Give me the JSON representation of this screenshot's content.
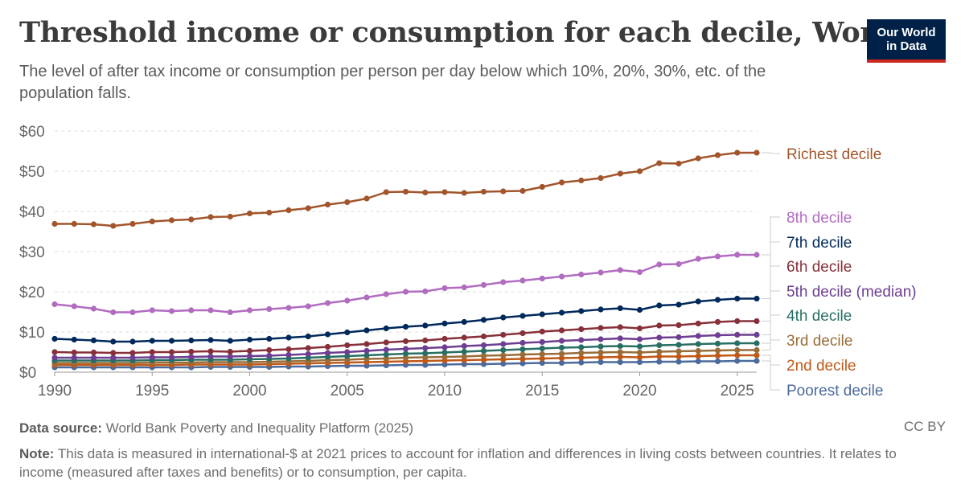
{
  "header": {
    "title": "Threshold income or consumption for each decile, World",
    "subtitle": "The level of after tax income or consumption per person per day below which 10%, 20%, 30%, etc. of the population falls.",
    "logo_line1": "Our World",
    "logo_line2": "in Data"
  },
  "footer": {
    "source_label": "Data source:",
    "source_text": "World Bank Poverty and Inequality Platform (2025)",
    "license": "CC BY",
    "note_label": "Note:",
    "note_text": "This data is measured in international-$ at 2021 prices to account for inflation and differences in living costs between countries. It relates to income (measured after taxes and benefits) or to consumption, per capita."
  },
  "chart_data": {
    "type": "line",
    "x": [
      1990,
      1991,
      1992,
      1993,
      1994,
      1995,
      1996,
      1997,
      1998,
      1999,
      2000,
      2001,
      2002,
      2003,
      2004,
      2005,
      2006,
      2007,
      2008,
      2009,
      2010,
      2011,
      2012,
      2013,
      2014,
      2015,
      2016,
      2017,
      2018,
      2019,
      2020,
      2021,
      2022,
      2023,
      2024,
      2025,
      2026
    ],
    "xlim": [
      1990,
      2026
    ],
    "ylim": [
      0,
      60
    ],
    "x_ticks": [
      1990,
      1995,
      2000,
      2005,
      2010,
      2015,
      2020,
      2025
    ],
    "y_ticks": [
      0,
      10,
      20,
      30,
      40,
      50,
      60
    ],
    "y_tick_labels": [
      "$0",
      "$10",
      "$20",
      "$30",
      "$40",
      "$50",
      "$60"
    ],
    "grid": "horizontal dashed",
    "legend": "right, labels at line ends",
    "series": [
      {
        "name": "Richest decile",
        "color": "#a2552c",
        "values": [
          36.9,
          36.9,
          36.8,
          36.4,
          36.9,
          37.5,
          37.8,
          38.0,
          38.6,
          38.7,
          39.5,
          39.7,
          40.3,
          40.8,
          41.7,
          42.3,
          43.2,
          44.8,
          44.9,
          44.7,
          44.8,
          44.6,
          44.9,
          45.0,
          45.1,
          46.1,
          47.2,
          47.7,
          48.3,
          49.4,
          50.0,
          52.0,
          51.9,
          53.2,
          54.0,
          54.6,
          54.6
        ]
      },
      {
        "name": "8th decile",
        "color": "#b16cc0",
        "values": [
          16.9,
          16.4,
          15.8,
          14.9,
          14.9,
          15.4,
          15.2,
          15.4,
          15.4,
          14.9,
          15.4,
          15.7,
          16.0,
          16.4,
          17.2,
          17.8,
          18.6,
          19.4,
          20.0,
          20.1,
          20.9,
          21.1,
          21.7,
          22.4,
          22.8,
          23.3,
          23.8,
          24.3,
          24.8,
          25.4,
          24.9,
          26.8,
          26.9,
          28.2,
          28.8,
          29.2,
          29.2
        ]
      },
      {
        "name": "7th decile",
        "color": "#00295b",
        "values": [
          8.3,
          8.1,
          7.9,
          7.6,
          7.6,
          7.8,
          7.8,
          7.9,
          8.0,
          7.8,
          8.1,
          8.3,
          8.6,
          8.9,
          9.4,
          9.9,
          10.4,
          10.9,
          11.3,
          11.6,
          12.1,
          12.5,
          13.0,
          13.6,
          14.0,
          14.4,
          14.8,
          15.2,
          15.6,
          15.9,
          15.5,
          16.6,
          16.8,
          17.6,
          18.0,
          18.3,
          18.3
        ]
      },
      {
        "name": "6th decile",
        "color": "#883039",
        "values": [
          5.0,
          4.9,
          4.9,
          4.8,
          4.8,
          5.0,
          5.0,
          5.1,
          5.2,
          5.1,
          5.3,
          5.5,
          5.7,
          6.0,
          6.3,
          6.7,
          7.0,
          7.4,
          7.7,
          7.9,
          8.3,
          8.6,
          8.9,
          9.3,
          9.7,
          10.1,
          10.4,
          10.7,
          11.0,
          11.2,
          10.9,
          11.6,
          11.7,
          12.1,
          12.5,
          12.7,
          12.7
        ]
      },
      {
        "name": "5th decile (median)",
        "color": "#6d3e91",
        "values": [
          3.6,
          3.6,
          3.6,
          3.6,
          3.6,
          3.7,
          3.7,
          3.8,
          3.9,
          3.9,
          4.0,
          4.1,
          4.3,
          4.5,
          4.8,
          5.0,
          5.3,
          5.6,
          5.8,
          6.0,
          6.2,
          6.5,
          6.7,
          7.0,
          7.3,
          7.5,
          7.8,
          8.0,
          8.2,
          8.4,
          8.2,
          8.6,
          8.7,
          9.0,
          9.2,
          9.3,
          9.3
        ]
      },
      {
        "name": "4th decile",
        "color": "#286f63",
        "values": [
          2.9,
          2.9,
          2.9,
          2.9,
          2.9,
          3.0,
          3.0,
          3.1,
          3.1,
          3.1,
          3.2,
          3.3,
          3.4,
          3.6,
          3.8,
          4.0,
          4.2,
          4.4,
          4.6,
          4.7,
          4.9,
          5.1,
          5.3,
          5.5,
          5.7,
          5.9,
          6.1,
          6.2,
          6.4,
          6.5,
          6.4,
          6.7,
          6.8,
          7.0,
          7.1,
          7.2,
          7.2
        ]
      },
      {
        "name": "3rd decile",
        "color": "#996d39",
        "values": [
          2.3,
          2.3,
          2.3,
          2.3,
          2.3,
          2.4,
          2.4,
          2.4,
          2.5,
          2.5,
          2.5,
          2.6,
          2.7,
          2.8,
          3.0,
          3.1,
          3.3,
          3.4,
          3.6,
          3.7,
          3.8,
          3.9,
          4.1,
          4.2,
          4.4,
          4.5,
          4.6,
          4.8,
          4.9,
          5.0,
          4.9,
          5.1,
          5.2,
          5.3,
          5.4,
          5.5,
          5.5
        ]
      },
      {
        "name": "2nd decile",
        "color": "#c05917",
        "values": [
          1.8,
          1.8,
          1.8,
          1.8,
          1.8,
          1.8,
          1.8,
          1.9,
          1.9,
          1.9,
          1.9,
          2.0,
          2.1,
          2.2,
          2.3,
          2.4,
          2.5,
          2.6,
          2.7,
          2.8,
          2.9,
          3.0,
          3.1,
          3.2,
          3.3,
          3.4,
          3.5,
          3.6,
          3.7,
          3.8,
          3.7,
          3.9,
          3.9,
          4.0,
          4.1,
          4.2,
          4.2
        ]
      },
      {
        "name": "Poorest decile",
        "color": "#4c6a9c",
        "values": [
          1.2,
          1.2,
          1.2,
          1.2,
          1.2,
          1.2,
          1.2,
          1.2,
          1.3,
          1.3,
          1.3,
          1.3,
          1.4,
          1.4,
          1.5,
          1.6,
          1.6,
          1.7,
          1.8,
          1.8,
          1.9,
          2.0,
          2.0,
          2.1,
          2.2,
          2.3,
          2.3,
          2.4,
          2.5,
          2.5,
          2.5,
          2.6,
          2.6,
          2.7,
          2.7,
          2.8,
          2.8
        ]
      }
    ]
  }
}
